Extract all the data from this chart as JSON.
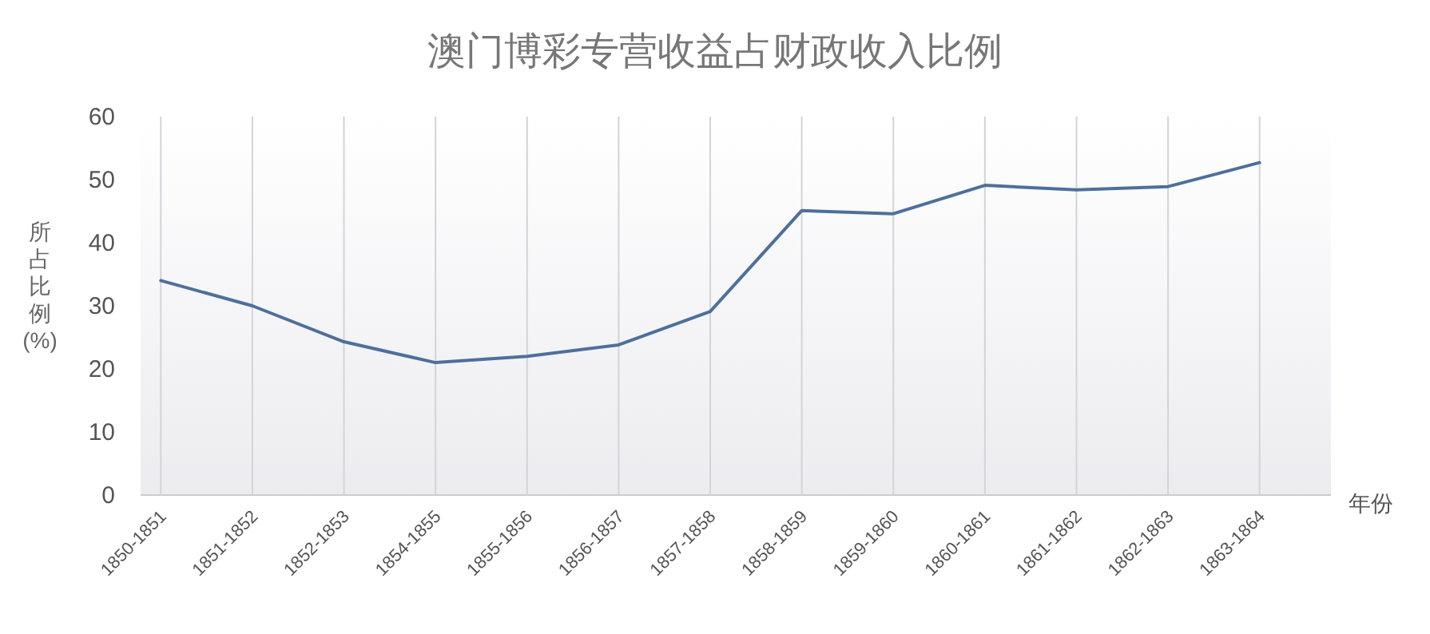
{
  "chart_data": {
    "type": "line",
    "title": "澳门博彩专营收益占财政收入比例",
    "xlabel": "年份",
    "ylabel": "所占比例(%)",
    "categories": [
      "1850-1851",
      "1851-1852",
      "1852-1853",
      "1854-1855",
      "1855-1856",
      "1856-1857",
      "1857-1858",
      "1858-1859",
      "1859-1860",
      "1860-1861",
      "1861-1862",
      "1862-1863",
      "1863-1864"
    ],
    "series": [
      {
        "color": "#4e6f9c",
        "values": [
          34,
          30,
          24.3,
          21,
          22,
          23.8,
          29.1,
          45.1,
          44.6,
          49.1,
          48.4,
          48.9,
          52.7
        ]
      }
    ],
    "ylim": [
      0,
      60
    ],
    "yticks": [
      0,
      10,
      20,
      30,
      40,
      50,
      60
    ],
    "grid": "x",
    "marker": "none",
    "line_style": "solid"
  }
}
